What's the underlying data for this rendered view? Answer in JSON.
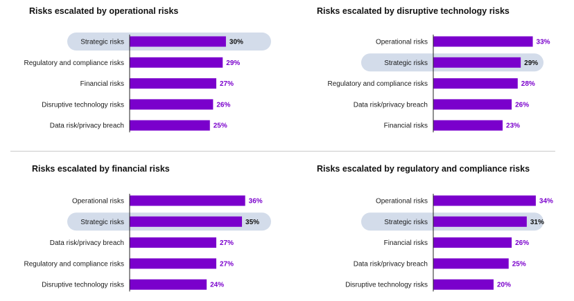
{
  "colors": {
    "bar": "#7a00cc",
    "highlight_pill": "#d3dcea",
    "axis": "#222222",
    "value_text": "#7a00cc",
    "value_text_highlight": "#111111"
  },
  "chart_data": [
    {
      "type": "bar",
      "orientation": "horizontal",
      "title": "Risks escalated by operational risks",
      "categories": [
        "Strategic risks",
        "Regulatory and compliance risks",
        "Financial risks",
        "Disruptive technology risks",
        "Data risk/privacy breach"
      ],
      "values": [
        30,
        29,
        27,
        26,
        25
      ],
      "value_labels": [
        "30%",
        "29%",
        "27%",
        "26%",
        "25%"
      ],
      "highlighted_category": "Strategic risks",
      "unit": "%"
    },
    {
      "type": "bar",
      "orientation": "horizontal",
      "title": "Risks escalated by disruptive technology risks",
      "categories": [
        "Operational risks",
        "Strategic risks",
        "Regulatory and compliance risks",
        "Data risk/privacy breach",
        "Financial risks"
      ],
      "values": [
        33,
        29,
        28,
        26,
        23
      ],
      "value_labels": [
        "33%",
        "29%",
        "28%",
        "26%",
        "23%"
      ],
      "highlighted_category": "Strategic risks",
      "unit": "%"
    },
    {
      "type": "bar",
      "orientation": "horizontal",
      "title": "Risks escalated by financial risks",
      "categories": [
        "Operational risks",
        "Strategic risks",
        "Data risk/privacy breach",
        "Regulatory and compliance risks",
        "Disruptive technology risks"
      ],
      "values": [
        36,
        35,
        27,
        27,
        24
      ],
      "value_labels": [
        "36%",
        "35%",
        "27%",
        "27%",
        "24%"
      ],
      "highlighted_category": "Strategic risks",
      "unit": "%"
    },
    {
      "type": "bar",
      "orientation": "horizontal",
      "title": "Risks escalated by regulatory and compliance risks",
      "categories": [
        "Operational risks",
        "Strategic risks",
        "Financial risks",
        "Data risk/privacy breach",
        "Disruptive technology risks"
      ],
      "values": [
        34,
        31,
        26,
        25,
        20
      ],
      "value_labels": [
        "34%",
        "31%",
        "26%",
        "25%",
        "20%"
      ],
      "highlighted_category": "Strategic risks",
      "unit": "%"
    }
  ]
}
